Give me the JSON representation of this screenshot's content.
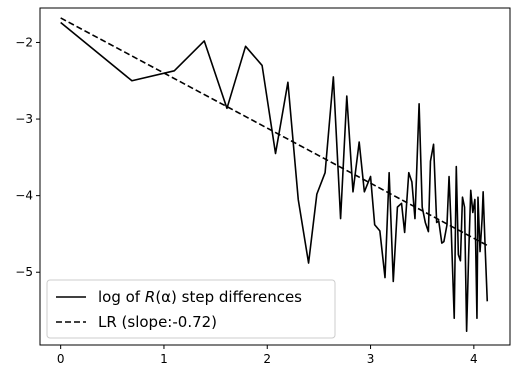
{
  "chart_data": {
    "type": "line",
    "xlim": [
      -0.2,
      4.35
    ],
    "ylim": [
      -5.95,
      -1.55
    ],
    "x_ticks": [
      {
        "value": 0,
        "label": "0"
      },
      {
        "value": 1,
        "label": "1"
      },
      {
        "value": 2,
        "label": "2"
      },
      {
        "value": 3,
        "label": "3"
      },
      {
        "value": 4,
        "label": "4"
      }
    ],
    "y_ticks": [
      {
        "value": -2,
        "label": "−2"
      },
      {
        "value": -3,
        "label": "−3"
      },
      {
        "value": -4,
        "label": "−4"
      },
      {
        "value": -5,
        "label": "−5"
      }
    ],
    "grid": false,
    "legend_position": "lower-left",
    "series": [
      {
        "name": "log of R(α) step differences",
        "legend_label": {
          "before": "log of ",
          "italic": "R",
          "after": "(α) step differences"
        },
        "style": "solid",
        "color": "#000000",
        "x": [
          0.0,
          0.69,
          1.1,
          1.39,
          1.61,
          1.79,
          1.95,
          2.08,
          2.2,
          2.3,
          2.4,
          2.48,
          2.56,
          2.64,
          2.71,
          2.77,
          2.83,
          2.89,
          2.94,
          3.0,
          3.04,
          3.09,
          3.14,
          3.18,
          3.22,
          3.26,
          3.3,
          3.33,
          3.37,
          3.4,
          3.43,
          3.47,
          3.5,
          3.53,
          3.56,
          3.58,
          3.61,
          3.64,
          3.66,
          3.69,
          3.71,
          3.74,
          3.76,
          3.78,
          3.81,
          3.83,
          3.85,
          3.87,
          3.89,
          3.91,
          3.93,
          3.95,
          3.97,
          3.99,
          4.01,
          4.03,
          4.04,
          4.06,
          4.08,
          4.09,
          4.11,
          4.13
        ],
        "y": [
          -1.74,
          -2.5,
          -2.37,
          -1.98,
          -2.86,
          -2.05,
          -2.3,
          -3.45,
          -2.52,
          -4.05,
          -4.88,
          -3.98,
          -3.7,
          -2.45,
          -4.3,
          -2.7,
          -3.95,
          -3.3,
          -3.95,
          -3.75,
          -4.38,
          -4.46,
          -5.07,
          -3.7,
          -5.12,
          -4.15,
          -4.1,
          -4.48,
          -3.7,
          -3.82,
          -4.3,
          -2.8,
          -4.15,
          -4.35,
          -4.47,
          -3.55,
          -3.33,
          -4.35,
          -4.33,
          -4.62,
          -4.6,
          -4.38,
          -3.75,
          -4.4,
          -5.6,
          -3.62,
          -4.77,
          -4.85,
          -4.02,
          -4.15,
          -5.77,
          -4.76,
          -3.93,
          -4.22,
          -4.05,
          -5.6,
          -4.02,
          -4.73,
          -4.3,
          -3.95,
          -4.7,
          -5.38
        ]
      },
      {
        "name": "LR (slope:-0.72)",
        "style": "dashed",
        "color": "#000000",
        "x": [
          0.0,
          4.13
        ],
        "y": [
          -1.68,
          -4.65
        ]
      }
    ]
  }
}
